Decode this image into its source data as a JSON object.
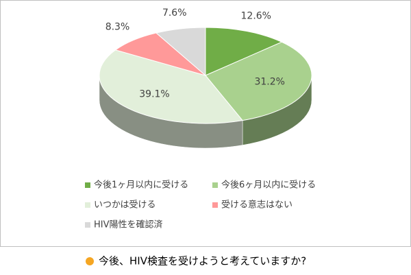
{
  "chart_data": {
    "type": "pie3d",
    "categories": [
      "今後1ヶ月以内に受ける",
      "今後6ヶ月以内に受ける",
      "いつかは受ける",
      "受ける意志はない",
      "HIV陽性を確認済"
    ],
    "values": [
      12.6,
      31.2,
      39.1,
      8.3,
      7.6
    ],
    "value_labels": [
      "12.6%",
      "31.2%",
      "39.1%",
      "8.3%",
      "7.6%"
    ],
    "colors": [
      "#70ad47",
      "#a9d18e",
      "#e2efda",
      "#ff9999",
      "#d9d9d9"
    ]
  },
  "caption": "今後、HIV検査を受けようと考えていますか?"
}
